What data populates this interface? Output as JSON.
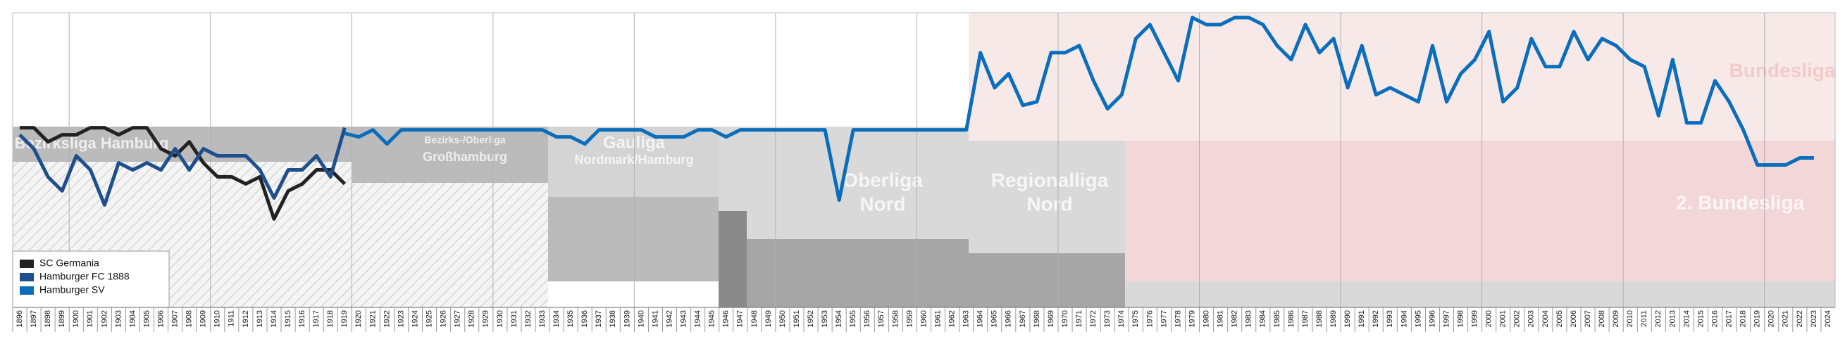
{
  "chart_data": {
    "type": "line",
    "leagues": [
      "Bezirksliga Hamburg",
      "Bezirks-/Oberliga",
      "Großhamburg",
      "Gauliga",
      "Nordmark/Hamburg",
      "Oberliga",
      "Nord",
      "Regionalliga",
      "Nord",
      "Bundesliga",
      "2. Bundesliga"
    ],
    "xlim": [
      1895.5,
      2024.5
    ],
    "ylim": [
      42,
      0
    ],
    "xticks": [
      1896,
      1897,
      1898,
      1899,
      1900,
      1901,
      1902,
      1903,
      1904,
      1905,
      1906,
      1907,
      1908,
      1909,
      1910,
      1911,
      1912,
      1913,
      1914,
      1915,
      1916,
      1917,
      1918,
      1919,
      1920,
      1921,
      1922,
      1923,
      1924,
      1925,
      1926,
      1927,
      1928,
      1929,
      1930,
      1931,
      1932,
      1933,
      1934,
      1935,
      1936,
      1937,
      1938,
      1939,
      1940,
      1941,
      1942,
      1943,
      1944,
      1945,
      1946,
      1947,
      1948,
      1949,
      1950,
      1951,
      1952,
      1953,
      1954,
      1955,
      1956,
      1957,
      1958,
      1959,
      1960,
      1961,
      1962,
      1963,
      1964,
      1965,
      1966,
      1967,
      1968,
      1969,
      1970,
      1971,
      1972,
      1973,
      1974,
      1975,
      1976,
      1977,
      1978,
      1979,
      1980,
      1981,
      1982,
      1983,
      1984,
      1985,
      1986,
      1987,
      1988,
      1989,
      1990,
      1991,
      1992,
      1993,
      1994,
      1995,
      1996,
      1997,
      1998,
      1999,
      2000,
      2001,
      2002,
      2003,
      2004,
      2005,
      2006,
      2007,
      2008,
      2009,
      2010,
      2011,
      2012,
      2013,
      2014,
      2015,
      2016,
      2017,
      2018,
      2019,
      2020,
      2021,
      2022,
      2023,
      2024
    ],
    "series": [
      {
        "name": "SC Germania",
        "color": "#222222",
        "x": [
          1896,
          1897,
          1898,
          1899,
          1900,
          1901,
          1902,
          1903,
          1904,
          1905,
          1906,
          1907,
          1908,
          1909,
          1910,
          1911,
          1912,
          1913,
          1914,
          1915,
          1916,
          1917,
          1918,
          1919
        ],
        "values": [
          16.4,
          16.4,
          18.4,
          17.4,
          17.4,
          16.4,
          16.4,
          17.4,
          16.4,
          16.4,
          19.4,
          20.4,
          18.4,
          21.4,
          23.4,
          23.4,
          24.4,
          23.4,
          29.4,
          25.4,
          24.4,
          22.4,
          22.4,
          24.4
        ]
      },
      {
        "name": "Hamburger FC 1888",
        "color": "#1f4e8c",
        "x": [
          1896,
          1897,
          1898,
          1899,
          1900,
          1901,
          1902,
          1903,
          1904,
          1905,
          1906,
          1907,
          1908,
          1909,
          1910,
          1911,
          1912,
          1913,
          1914,
          1915,
          1916,
          1917,
          1918,
          1919
        ],
        "values": [
          17.4,
          19.4,
          23.4,
          25.4,
          20.4,
          22.4,
          27.4,
          21.4,
          22.4,
          21.4,
          22.4,
          19.4,
          22.4,
          19.4,
          20.4,
          20.4,
          20.4,
          22.4,
          26.4,
          22.4,
          22.4,
          20.4,
          23.4,
          16.4
        ]
      },
      {
        "name": "Hamburger SV",
        "color": "#0a6ebd",
        "x": [
          1919,
          1920,
          1921,
          1922,
          1923,
          1924,
          1925,
          1926,
          1927,
          1928,
          1929,
          1930,
          1931,
          1932,
          1933,
          1934,
          1935,
          1936,
          1937,
          1938,
          1939,
          1940,
          1941,
          1942,
          1943,
          1944,
          1945,
          1946,
          1947,
          1948,
          1949,
          1950,
          1951,
          1952,
          1953,
          1954,
          1955,
          1956,
          1957,
          1958,
          1959,
          1960,
          1961,
          1962,
          1963,
          1964,
          1965,
          1966,
          1967,
          1968,
          1969,
          1970,
          1971,
          1972,
          1973,
          1974,
          1975,
          1976,
          1977,
          1978,
          1979,
          1980,
          1981,
          1982,
          1983,
          1984,
          1985,
          1986,
          1987,
          1988,
          1989,
          1990,
          1991,
          1992,
          1993,
          1994,
          1995,
          1996,
          1997,
          1998,
          1999,
          2000,
          2001,
          2002,
          2003,
          2004,
          2005,
          2006,
          2007,
          2008,
          2009,
          2010,
          2011,
          2012,
          2013,
          2014,
          2015,
          2016,
          2017,
          2018,
          2019,
          2020,
          2021,
          2022,
          2023
        ],
        "values": [
          17.2,
          17.7,
          16.7,
          18.7,
          16.7,
          16.7,
          16.7,
          16.7,
          16.7,
          16.7,
          16.7,
          16.7,
          16.7,
          16.7,
          16.7,
          17.7,
          17.7,
          18.7,
          16.7,
          16.7,
          16.7,
          16.7,
          17.7,
          17.7,
          17.7,
          16.7,
          16.7,
          17.7,
          16.7,
          16.7,
          16.7,
          16.7,
          16.7,
          16.7,
          16.7,
          26.7,
          16.7,
          16.7,
          16.7,
          16.7,
          16.7,
          16.7,
          16.7,
          16.7,
          16.7,
          5.7,
          10.7,
          8.7,
          13.2,
          12.7,
          5.7,
          5.7,
          4.7,
          9.7,
          13.7,
          11.7,
          3.7,
          1.7,
          5.7,
          9.7,
          0.7,
          1.7,
          1.7,
          0.7,
          0.7,
          1.7,
          4.7,
          6.7,
          1.7,
          5.7,
          3.7,
          10.7,
          4.7,
          11.7,
          10.7,
          11.7,
          12.7,
          4.7,
          12.7,
          8.7,
          6.7,
          2.7,
          12.7,
          10.7,
          3.7,
          7.7,
          7.7,
          2.7,
          6.7,
          3.7,
          4.7,
          6.7,
          7.7,
          14.7,
          6.7,
          15.7,
          15.7,
          9.7,
          12.7,
          16.7,
          21.7,
          21.7,
          21.7,
          20.7,
          20.7
        ]
      }
    ]
  }
}
